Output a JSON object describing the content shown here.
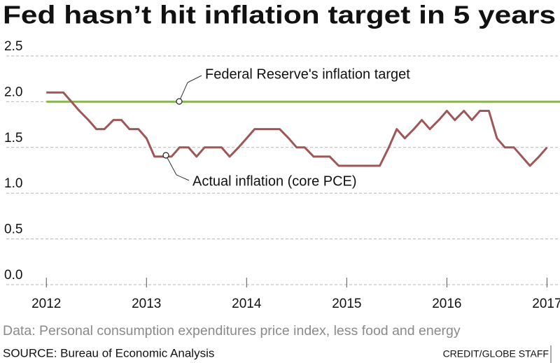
{
  "chart_data": {
    "type": "line",
    "title": "Fed hasn’t hit inflation target in 5 years",
    "note": "Data: Personal consumption expenditures price index,  less food and energy",
    "source": "SOURCE: Bureau of Economic Analysis",
    "credit": "CREDIT/GLOBE STAFF",
    "annotations": [
      "Federal Reserve's inflation target",
      "Actual inflation (core PCE)"
    ],
    "xlim": [
      2011.6,
      2017.13
    ],
    "xticks": [
      2012,
      2013,
      2014,
      2015,
      2016,
      2017
    ],
    "ylim": [
      0,
      2.5
    ],
    "yticks": [
      {
        "value": 0,
        "label": "0.0"
      },
      0.5,
      {
        "value": 1,
        "label": "1.0"
      },
      1.5,
      {
        "value": 2,
        "label": "2.0"
      },
      2.5
    ],
    "grid": true,
    "series": [
      {
        "color": "#8cb553",
        "x": [
          2012,
          2017.13
        ],
        "values": [
          2.0,
          2.0
        ]
      },
      {
        "color": "#9e5656",
        "x": [
          2012,
          2012.08,
          2012.17,
          2012.25,
          2012.33,
          2012.42,
          2012.5,
          2012.58,
          2012.67,
          2012.75,
          2012.83,
          2012.92,
          2013,
          2013.08,
          2013.17,
          2013.25,
          2013.33,
          2013.42,
          2013.5,
          2013.58,
          2013.67,
          2013.75,
          2013.83,
          2013.92,
          2014,
          2014.08,
          2014.17,
          2014.25,
          2014.33,
          2014.42,
          2014.5,
          2014.58,
          2014.67,
          2014.75,
          2014.83,
          2014.92,
          2015,
          2015.08,
          2015.17,
          2015.25,
          2015.33,
          2015.42,
          2015.5,
          2015.58,
          2015.67,
          2015.75,
          2015.83,
          2015.92,
          2016,
          2016.08,
          2016.17,
          2016.25,
          2016.33,
          2016.42,
          2016.5,
          2016.58,
          2016.67,
          2016.75,
          2016.83,
          2016.92,
          2017
        ],
        "values": [
          2.1,
          2.1,
          2.1,
          2.0,
          1.9,
          1.8,
          1.7,
          1.7,
          1.8,
          1.8,
          1.7,
          1.7,
          1.6,
          1.4,
          1.4,
          1.4,
          1.5,
          1.5,
          1.4,
          1.5,
          1.5,
          1.5,
          1.4,
          1.5,
          1.6,
          1.7,
          1.7,
          1.7,
          1.7,
          1.6,
          1.5,
          1.5,
          1.4,
          1.4,
          1.4,
          1.3,
          1.3,
          1.3,
          1.3,
          1.3,
          1.3,
          1.5,
          1.7,
          1.6,
          1.7,
          1.8,
          1.7,
          1.8,
          1.9,
          1.8,
          1.9,
          1.8,
          1.9,
          1.9,
          1.6,
          1.5,
          1.5,
          1.4,
          1.3,
          1.4,
          1.5
        ]
      }
    ]
  }
}
